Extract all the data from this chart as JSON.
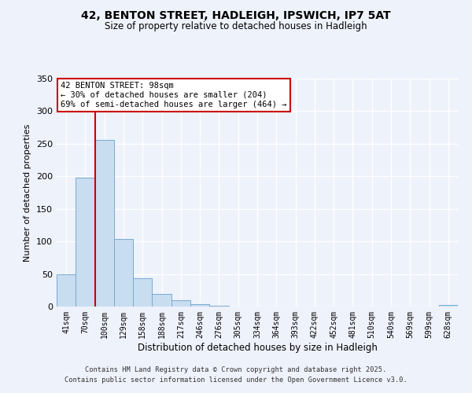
{
  "title": "42, BENTON STREET, HADLEIGH, IPSWICH, IP7 5AT",
  "subtitle": "Size of property relative to detached houses in Hadleigh",
  "xlabel": "Distribution of detached houses by size in Hadleigh",
  "ylabel": "Number of detached properties",
  "bin_labels": [
    "41sqm",
    "70sqm",
    "100sqm",
    "129sqm",
    "158sqm",
    "188sqm",
    "217sqm",
    "246sqm",
    "276sqm",
    "305sqm",
    "334sqm",
    "364sqm",
    "393sqm",
    "422sqm",
    "452sqm",
    "481sqm",
    "510sqm",
    "540sqm",
    "569sqm",
    "599sqm",
    "628sqm"
  ],
  "bar_values": [
    50,
    198,
    256,
    104,
    43,
    19,
    10,
    4,
    1,
    0,
    0,
    0,
    0,
    0,
    0,
    0,
    0,
    0,
    0,
    0,
    2
  ],
  "bar_color": "#c8ddf0",
  "bar_edge_color": "#7aaad0",
  "vline_color": "#cc0000",
  "vline_index": 1.5,
  "annotation_text": "42 BENTON STREET: 98sqm\n← 30% of detached houses are smaller (204)\n69% of semi-detached houses are larger (464) →",
  "annotation_box_color": "#ffffff",
  "annotation_box_edge": "#cc0000",
  "ylim": [
    0,
    350
  ],
  "yticks": [
    0,
    50,
    100,
    150,
    200,
    250,
    300,
    350
  ],
  "background_color": "#eef2fb",
  "grid_color": "#ffffff",
  "footer_line1": "Contains HM Land Registry data © Crown copyright and database right 2025.",
  "footer_line2": "Contains public sector information licensed under the Open Government Licence v3.0."
}
